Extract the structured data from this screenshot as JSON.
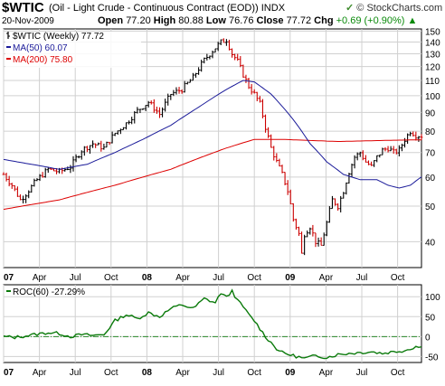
{
  "header": {
    "ticker": "$WTIC",
    "description": "(Oil - Light Crude - Continuous Contract (EOD)) INDX",
    "date": "20-Nov-2009",
    "open_label": "Open",
    "open": "77.20",
    "high_label": "High",
    "high": "80.88",
    "low_label": "Low",
    "low": "76.76",
    "close_label": "Close",
    "close": "77.72",
    "chg_label": "Chg",
    "chg": "+0.69 (+0.90%)",
    "chg_arrow": "▲",
    "brand": "© StockCharts.com",
    "brand_icon": "check-icon"
  },
  "colors": {
    "price": "#000000",
    "down_bar": "#cc0000",
    "ma50": "#1a1a99",
    "ma200": "#dd0000",
    "roc": "#0a7a0a",
    "zero_line": "#2a8a2a",
    "grid": "#d0d0d0"
  },
  "chart_data": [
    {
      "type": "line",
      "legend": {
        "price": "$WTIC (Weekly) 77.72",
        "ma50": "MA(50) 60.07",
        "ma200": "MA(200) 75.80"
      },
      "y_scale": "log",
      "ylim": [
        34,
        152
      ],
      "y_ticks": [
        40,
        50,
        60,
        70,
        80,
        90,
        100,
        110,
        120,
        130,
        140,
        150
      ],
      "x_ticks": [
        "07",
        "Apr",
        "Jul",
        "Oct",
        "08",
        "Apr",
        "Jul",
        "Oct",
        "09",
        "Apr",
        "Jul",
        "Oct"
      ],
      "x_ticks_bold": [
        "07",
        "08",
        "09"
      ],
      "grid": true,
      "price_keypoints": [
        [
          0,
          61
        ],
        [
          3,
          57
        ],
        [
          6,
          52
        ],
        [
          8,
          54
        ],
        [
          12,
          59
        ],
        [
          16,
          63
        ],
        [
          20,
          62
        ],
        [
          24,
          64
        ],
        [
          28,
          71
        ],
        [
          32,
          74
        ],
        [
          36,
          72
        ],
        [
          40,
          79
        ],
        [
          44,
          84
        ],
        [
          48,
          91
        ],
        [
          52,
          96
        ],
        [
          56,
          89
        ],
        [
          60,
          101
        ],
        [
          64,
          104
        ],
        [
          68,
          112
        ],
        [
          72,
          125
        ],
        [
          76,
          135
        ],
        [
          78,
          140
        ],
        [
          80,
          142
        ],
        [
          82,
          130
        ],
        [
          84,
          124
        ],
        [
          86,
          114
        ],
        [
          88,
          106
        ],
        [
          90,
          101
        ],
        [
          92,
          95
        ],
        [
          94,
          82
        ],
        [
          96,
          72
        ],
        [
          98,
          66
        ],
        [
          100,
          61
        ],
        [
          102,
          55
        ],
        [
          104,
          46
        ],
        [
          106,
          42
        ],
        [
          107,
          37
        ],
        [
          108,
          42
        ],
        [
          110,
          44
        ],
        [
          112,
          40
        ],
        [
          114,
          39
        ],
        [
          116,
          45
        ],
        [
          118,
          52
        ],
        [
          120,
          50
        ],
        [
          122,
          55
        ],
        [
          124,
          62
        ],
        [
          126,
          68
        ],
        [
          128,
          70
        ],
        [
          130,
          66
        ],
        [
          132,
          64
        ],
        [
          134,
          68
        ],
        [
          136,
          71
        ],
        [
          138,
          72
        ],
        [
          140,
          70
        ],
        [
          142,
          71
        ],
        [
          144,
          76
        ],
        [
          146,
          80
        ],
        [
          148,
          78
        ],
        [
          150,
          77.72
        ]
      ],
      "ma50_keypoints": [
        [
          0,
          67
        ],
        [
          10,
          65
        ],
        [
          20,
          63
        ],
        [
          30,
          65
        ],
        [
          40,
          70
        ],
        [
          50,
          76
        ],
        [
          60,
          83
        ],
        [
          70,
          93
        ],
        [
          80,
          104
        ],
        [
          86,
          110
        ],
        [
          90,
          109
        ],
        [
          96,
          101
        ],
        [
          104,
          86
        ],
        [
          110,
          74
        ],
        [
          116,
          66
        ],
        [
          122,
          61
        ],
        [
          128,
          59
        ],
        [
          134,
          59
        ],
        [
          138,
          57
        ],
        [
          142,
          56
        ],
        [
          146,
          57
        ],
        [
          150,
          60.07
        ]
      ],
      "ma200_keypoints": [
        [
          0,
          49
        ],
        [
          20,
          52
        ],
        [
          40,
          57
        ],
        [
          60,
          63
        ],
        [
          80,
          72
        ],
        [
          90,
          76
        ],
        [
          100,
          76
        ],
        [
          110,
          75.5
        ],
        [
          120,
          75
        ],
        [
          130,
          75.3
        ],
        [
          140,
          75.6
        ],
        [
          150,
          75.8
        ]
      ]
    },
    {
      "type": "line",
      "legend": {
        "roc": "ROC(60) -27.29%"
      },
      "ylim": [
        -65,
        130
      ],
      "y_ticks": [
        -50,
        0,
        50,
        100
      ],
      "x_ticks": [
        "07",
        "Apr",
        "Jul",
        "Oct",
        "08",
        "Apr",
        "Jul",
        "Oct",
        "09",
        "Apr",
        "Jul",
        "Oct"
      ],
      "x_ticks_bold": [
        "07",
        "08",
        "09"
      ],
      "grid": true,
      "zero_line": 0,
      "roc_keypoints": [
        [
          0,
          0
        ],
        [
          4,
          -2
        ],
        [
          8,
          2
        ],
        [
          12,
          6
        ],
        [
          16,
          10
        ],
        [
          20,
          8
        ],
        [
          24,
          0
        ],
        [
          28,
          5
        ],
        [
          32,
          3
        ],
        [
          36,
          5
        ],
        [
          40,
          40
        ],
        [
          44,
          55
        ],
        [
          48,
          45
        ],
        [
          52,
          60
        ],
        [
          56,
          50
        ],
        [
          60,
          70
        ],
        [
          64,
          80
        ],
        [
          68,
          70
        ],
        [
          72,
          95
        ],
        [
          76,
          85
        ],
        [
          78,
          110
        ],
        [
          80,
          98
        ],
        [
          82,
          115
        ],
        [
          84,
          90
        ],
        [
          86,
          75
        ],
        [
          88,
          55
        ],
        [
          90,
          40
        ],
        [
          92,
          20
        ],
        [
          94,
          0
        ],
        [
          96,
          -15
        ],
        [
          98,
          -30
        ],
        [
          100,
          -40
        ],
        [
          104,
          -48
        ],
        [
          108,
          -55
        ],
        [
          112,
          -48
        ],
        [
          116,
          -52
        ],
        [
          120,
          -45
        ],
        [
          124,
          -42
        ],
        [
          128,
          -40
        ],
        [
          132,
          -38
        ],
        [
          136,
          -42
        ],
        [
          140,
          -38
        ],
        [
          144,
          -35
        ],
        [
          148,
          -25
        ],
        [
          150,
          -27.29
        ]
      ]
    }
  ]
}
